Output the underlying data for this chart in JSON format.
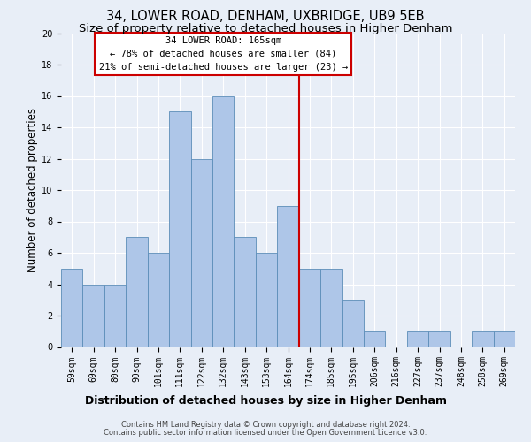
{
  "title": "34, LOWER ROAD, DENHAM, UXBRIDGE, UB9 5EB",
  "subtitle": "Size of property relative to detached houses in Higher Denham",
  "xlabel_bottom": "Distribution of detached houses by size in Higher Denham",
  "ylabel": "Number of detached properties",
  "bins": [
    "59sqm",
    "69sqm",
    "80sqm",
    "90sqm",
    "101sqm",
    "111sqm",
    "122sqm",
    "132sqm",
    "143sqm",
    "153sqm",
    "164sqm",
    "174sqm",
    "185sqm",
    "195sqm",
    "206sqm",
    "216sqm",
    "227sqm",
    "237sqm",
    "248sqm",
    "258sqm",
    "269sqm"
  ],
  "values": [
    5,
    4,
    4,
    7,
    6,
    15,
    12,
    16,
    7,
    6,
    9,
    5,
    5,
    3,
    1,
    0,
    1,
    1,
    0,
    1,
    1
  ],
  "bar_color": "#aec6e8",
  "bar_edge_color": "#5b8db8",
  "highlight_label": "34 LOWER ROAD: 165sqm",
  "annotation_line1": "← 78% of detached houses are smaller (84)",
  "annotation_line2": "21% of semi-detached houses are larger (23) →",
  "annotation_box_color": "#ffffff",
  "annotation_box_edge_color": "#cc0000",
  "vline_color": "#cc0000",
  "footer1": "Contains HM Land Registry data © Crown copyright and database right 2024.",
  "footer2": "Contains public sector information licensed under the Open Government Licence v3.0.",
  "ylim": [
    0,
    20
  ],
  "yticks": [
    0,
    2,
    4,
    6,
    8,
    10,
    12,
    14,
    16,
    18,
    20
  ],
  "background_color": "#e8eef7",
  "grid_color": "#ffffff",
  "title_fontsize": 10.5,
  "subtitle_fontsize": 9.5,
  "ylabel_fontsize": 8.5,
  "tick_fontsize": 7,
  "annotation_fontsize": 7.5,
  "footer_fontsize": 6,
  "xlabel_fontsize": 9
}
